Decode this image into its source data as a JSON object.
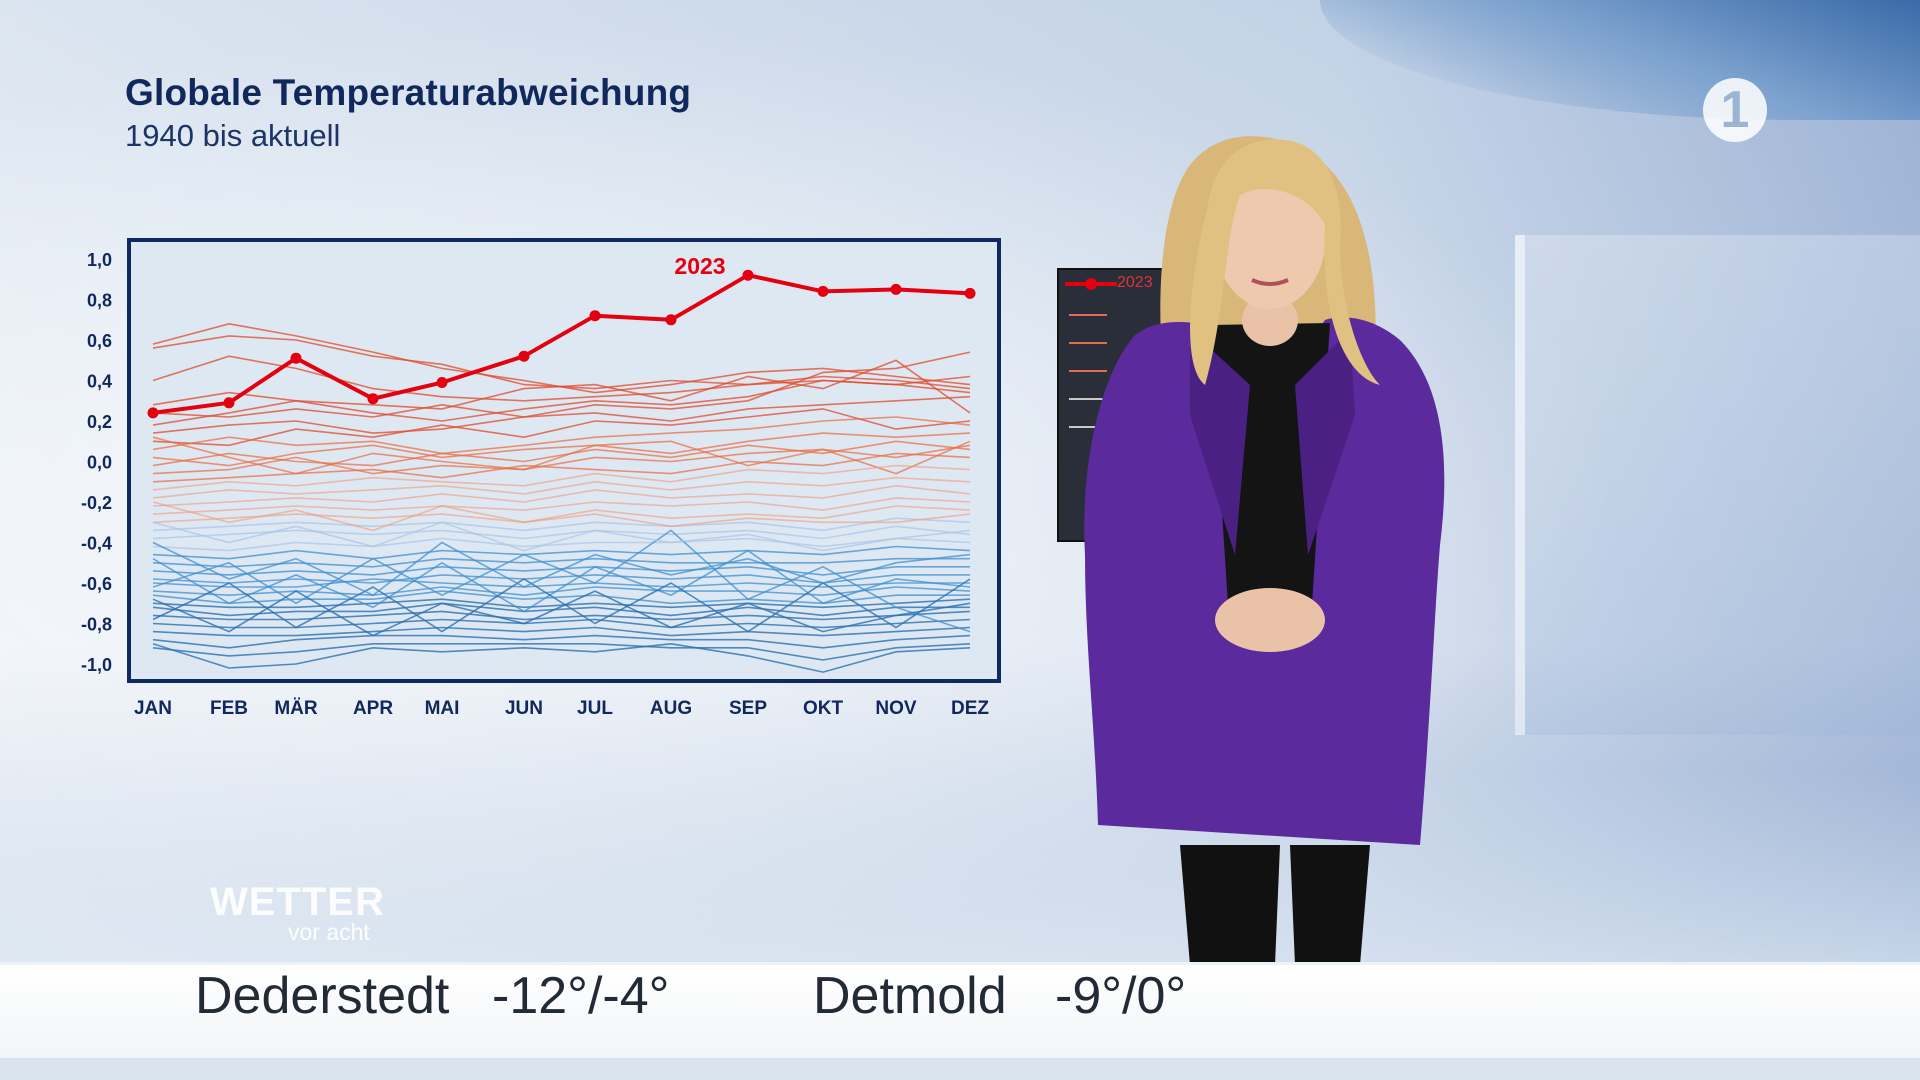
{
  "header": {
    "title": "Globale Temperaturabweichung",
    "subtitle": "1940 bis aktuell"
  },
  "broadcaster_logo": "1",
  "monitor": {
    "highlight_label": "2023"
  },
  "brand": {
    "main": "WETTER",
    "sub": "vor acht"
  },
  "ticker": [
    {
      "city": "Dederstedt",
      "temps": "-12°/-4°"
    },
    {
      "city": "Detmold",
      "temps": "-9°/0°"
    }
  ],
  "colors": {
    "highlight": "#e3000f",
    "warm": "#e8542a",
    "cool": "#2b7fc0",
    "frame": "#0f2a63",
    "text": "#10285c"
  },
  "chart_data": {
    "type": "line",
    "title": "Globale Temperaturabweichung",
    "subtitle": "1940 bis aktuell",
    "categories": [
      "JAN",
      "FEB",
      "MÄR",
      "APR",
      "MAI",
      "JUN",
      "JUL",
      "AUG",
      "SEP",
      "OKT",
      "NOV",
      "DEZ"
    ],
    "x_positions": [
      1,
      2,
      3,
      4,
      5,
      6,
      7,
      8,
      9,
      10,
      11,
      12
    ],
    "ylim": [
      -1.0,
      1.0
    ],
    "yticks": [
      "1,0",
      "0,8",
      "0,6",
      "0,4",
      "0,2",
      "0,0",
      "-0,2",
      "-0,4",
      "-0,6",
      "-0,8",
      "-1,0"
    ],
    "ytick_values": [
      1.0,
      0.8,
      0.6,
      0.4,
      0.2,
      0.0,
      -0.2,
      -0.4,
      -0.6,
      -0.8,
      -1.0
    ],
    "grid": false,
    "highlight": {
      "name": "2023",
      "values": [
        0.24,
        0.29,
        0.51,
        0.31,
        0.39,
        0.52,
        0.72,
        0.7,
        0.92,
        0.84,
        0.85,
        0.83
      ]
    },
    "background_series_note_free": true,
    "background_series": [
      [
        0.56,
        0.62,
        0.6,
        0.52,
        0.48,
        0.38,
        0.36,
        0.4,
        0.38,
        0.42,
        0.4,
        0.36
      ],
      [
        0.58,
        0.68,
        0.62,
        0.54,
        0.46,
        0.4,
        0.34,
        0.38,
        0.44,
        0.46,
        0.42,
        0.38
      ],
      [
        0.4,
        0.52,
        0.46,
        0.36,
        0.32,
        0.3,
        0.32,
        0.34,
        0.38,
        0.4,
        0.38,
        0.42
      ],
      [
        0.28,
        0.34,
        0.3,
        0.28,
        0.26,
        0.36,
        0.38,
        0.3,
        0.42,
        0.36,
        0.5,
        0.24
      ],
      [
        0.24,
        0.22,
        0.26,
        0.22,
        0.28,
        0.22,
        0.28,
        0.26,
        0.3,
        0.44,
        0.46,
        0.54
      ],
      [
        0.18,
        0.24,
        0.3,
        0.24,
        0.2,
        0.26,
        0.3,
        0.28,
        0.32,
        0.4,
        0.38,
        0.34
      ],
      [
        0.14,
        0.18,
        0.2,
        0.14,
        0.16,
        0.22,
        0.24,
        0.2,
        0.26,
        0.28,
        0.3,
        0.32
      ],
      [
        0.1,
        0.08,
        0.16,
        0.12,
        0.18,
        0.12,
        0.2,
        0.18,
        0.22,
        0.26,
        0.16,
        0.2
      ],
      [
        0.06,
        0.12,
        0.08,
        0.1,
        0.04,
        0.08,
        0.12,
        0.14,
        0.16,
        0.2,
        0.22,
        0.18
      ],
      [
        0.02,
        -0.02,
        0.04,
        0.08,
        0.02,
        0.06,
        0.08,
        0.04,
        0.1,
        0.14,
        0.12,
        0.14
      ],
      [
        -0.02,
        0.04,
        0.0,
        -0.02,
        0.04,
        0.0,
        0.06,
        0.02,
        0.08,
        0.04,
        0.1,
        0.06
      ],
      [
        -0.06,
        -0.04,
        0.02,
        -0.06,
        -0.02,
        -0.04,
        0.02,
        0.0,
        0.04,
        0.06,
        0.02,
        0.08
      ],
      [
        -0.1,
        -0.08,
        -0.06,
        -0.04,
        -0.08,
        -0.02,
        -0.04,
        -0.06,
        0.0,
        -0.02,
        0.04,
        0.02
      ],
      [
        0.12,
        0.02,
        -0.06,
        0.04,
        0.0,
        -0.04,
        0.08,
        0.1,
        -0.02,
        0.06,
        -0.06,
        0.1
      ],
      [
        -0.14,
        -0.1,
        -0.12,
        -0.08,
        -0.1,
        -0.12,
        -0.06,
        -0.1,
        -0.04,
        -0.06,
        -0.02,
        -0.04
      ],
      [
        -0.18,
        -0.14,
        -0.16,
        -0.14,
        -0.12,
        -0.16,
        -0.1,
        -0.14,
        -0.1,
        -0.12,
        -0.08,
        -0.1
      ],
      [
        -0.22,
        -0.2,
        -0.18,
        -0.2,
        -0.16,
        -0.2,
        -0.14,
        -0.18,
        -0.16,
        -0.18,
        -0.12,
        -0.16
      ],
      [
        -0.26,
        -0.24,
        -0.22,
        -0.24,
        -0.22,
        -0.24,
        -0.2,
        -0.22,
        -0.2,
        -0.24,
        -0.18,
        -0.2
      ],
      [
        -0.3,
        -0.28,
        -0.26,
        -0.28,
        -0.26,
        -0.3,
        -0.24,
        -0.28,
        -0.26,
        -0.28,
        -0.22,
        -0.24
      ],
      [
        -0.34,
        -0.32,
        -0.3,
        -0.32,
        -0.3,
        -0.34,
        -0.3,
        -0.32,
        -0.3,
        -0.34,
        -0.28,
        -0.3
      ],
      [
        -0.38,
        -0.36,
        -0.34,
        -0.36,
        -0.34,
        -0.38,
        -0.34,
        -0.36,
        -0.34,
        -0.38,
        -0.32,
        -0.36
      ],
      [
        -0.42,
        -0.44,
        -0.4,
        -0.42,
        -0.38,
        -0.42,
        -0.4,
        -0.4,
        -0.38,
        -0.42,
        -0.38,
        -0.4
      ],
      [
        -0.46,
        -0.48,
        -0.44,
        -0.48,
        -0.44,
        -0.46,
        -0.44,
        -0.46,
        -0.44,
        -0.46,
        -0.42,
        -0.44
      ],
      [
        -0.5,
        -0.52,
        -0.5,
        -0.52,
        -0.48,
        -0.5,
        -0.48,
        -0.5,
        -0.5,
        -0.5,
        -0.48,
        -0.48
      ],
      [
        -0.54,
        -0.56,
        -0.54,
        -0.56,
        -0.52,
        -0.54,
        -0.52,
        -0.54,
        -0.52,
        -0.56,
        -0.52,
        -0.52
      ],
      [
        -0.58,
        -0.6,
        -0.58,
        -0.6,
        -0.56,
        -0.58,
        -0.56,
        -0.58,
        -0.56,
        -0.6,
        -0.56,
        -0.56
      ],
      [
        -0.6,
        -0.62,
        -0.62,
        -0.58,
        -0.6,
        -0.62,
        -0.6,
        -0.62,
        -0.6,
        -0.62,
        -0.6,
        -0.6
      ],
      [
        -0.64,
        -0.66,
        -0.64,
        -0.66,
        -0.62,
        -0.66,
        -0.62,
        -0.64,
        -0.64,
        -0.66,
        -0.62,
        -0.64
      ],
      [
        -0.66,
        -0.7,
        -0.68,
        -0.68,
        -0.64,
        -0.68,
        -0.66,
        -0.7,
        -0.68,
        -0.7,
        -0.66,
        -0.66
      ],
      [
        -0.7,
        -0.72,
        -0.72,
        -0.7,
        -0.68,
        -0.72,
        -0.7,
        -0.72,
        -0.7,
        -0.72,
        -0.7,
        -0.68
      ],
      [
        -0.72,
        -0.76,
        -0.74,
        -0.74,
        -0.7,
        -0.74,
        -0.72,
        -0.76,
        -0.72,
        -0.76,
        -0.72,
        -0.72
      ],
      [
        -0.76,
        -0.78,
        -0.78,
        -0.76,
        -0.74,
        -0.78,
        -0.76,
        -0.78,
        -0.76,
        -0.78,
        -0.76,
        -0.74
      ],
      [
        -0.8,
        -0.82,
        -0.82,
        -0.8,
        -0.78,
        -0.8,
        -0.78,
        -0.82,
        -0.8,
        -0.82,
        -0.8,
        -0.78
      ],
      [
        -0.84,
        -0.86,
        -0.86,
        -0.84,
        -0.82,
        -0.84,
        -0.82,
        -0.86,
        -0.84,
        -0.86,
        -0.84,
        -0.82
      ],
      [
        -0.88,
        -0.92,
        -0.88,
        -0.86,
        -0.86,
        -0.88,
        -0.86,
        -0.88,
        -0.88,
        -0.92,
        -0.88,
        -0.86
      ],
      [
        -0.92,
        -0.96,
        -0.94,
        -0.9,
        -0.9,
        -0.9,
        -0.9,
        -0.92,
        -0.92,
        -0.98,
        -0.92,
        -0.9
      ],
      [
        -0.9,
        -1.02,
        -1.0,
        -0.92,
        -0.94,
        -0.92,
        -0.94,
        -0.9,
        -0.96,
        -1.04,
        -0.94,
        -0.92
      ],
      [
        -0.62,
        -0.5,
        -0.7,
        -0.48,
        -0.66,
        -0.46,
        -0.6,
        -0.34,
        -0.68,
        -0.52,
        -0.72,
        -0.84
      ],
      [
        -0.48,
        -0.7,
        -0.56,
        -0.72,
        -0.5,
        -0.74,
        -0.52,
        -0.66,
        -0.44,
        -0.7,
        -0.58,
        -0.62
      ],
      [
        -0.78,
        -0.6,
        -0.82,
        -0.62,
        -0.84,
        -0.58,
        -0.8,
        -0.6,
        -0.84,
        -0.6,
        -0.82,
        -0.58
      ],
      [
        -0.4,
        -0.58,
        -0.48,
        -0.66,
        -0.4,
        -0.62,
        -0.46,
        -0.56,
        -0.48,
        -0.6,
        -0.5,
        -0.46
      ],
      [
        -0.68,
        -0.84,
        -0.64,
        -0.86,
        -0.7,
        -0.8,
        -0.64,
        -0.82,
        -0.7,
        -0.84,
        -0.76,
        -0.7
      ],
      [
        -0.3,
        -0.4,
        -0.32,
        -0.42,
        -0.3,
        -0.44,
        -0.34,
        -0.4,
        -0.36,
        -0.44,
        -0.38,
        -0.34
      ],
      [
        -0.2,
        -0.3,
        -0.24,
        -0.34,
        -0.22,
        -0.3,
        -0.26,
        -0.32,
        -0.28,
        -0.3,
        -0.3,
        -0.26
      ]
    ]
  }
}
